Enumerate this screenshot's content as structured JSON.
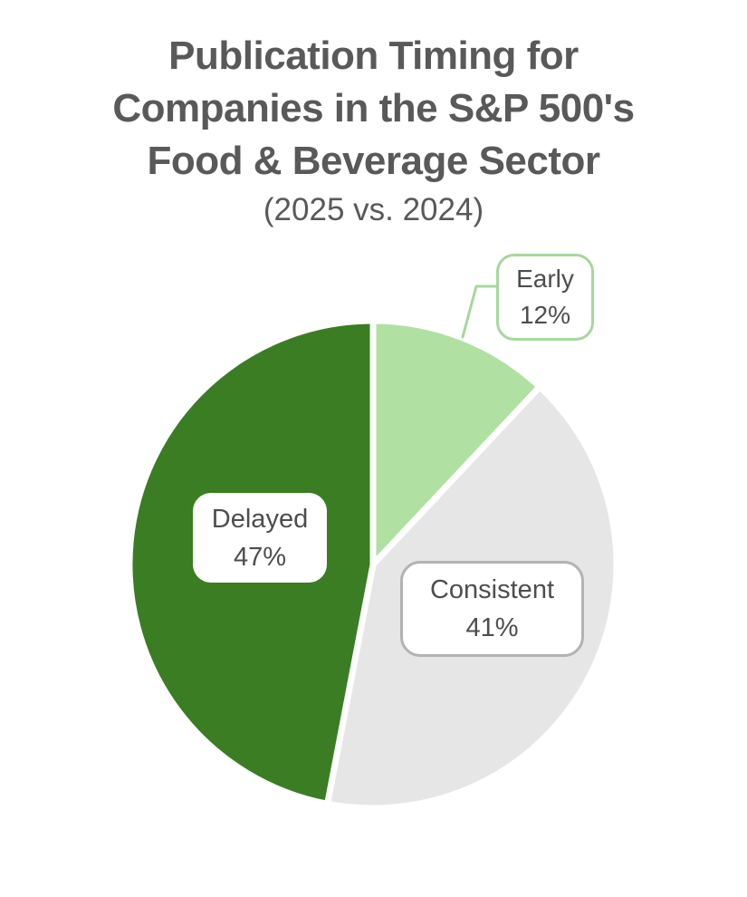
{
  "header": {
    "title_lines": [
      "Publication Timing for",
      "Companies in the S&P 500's",
      "Food & Beverage Sector"
    ],
    "subtitle": "(2025 vs. 2024)"
  },
  "colors": {
    "page_bg": "#FFFFFF",
    "title_text": "#595959",
    "label_text": "#4D4D4D",
    "slice_gap": "#FFFFFF",
    "early_box_border": "#A6D89B",
    "consistent_box_border": "#B3B3B3",
    "delayed_box_bg": "#FFFFFF"
  },
  "chart_data": {
    "type": "pie",
    "title": "Publication Timing for Companies in the S&P 500's Food & Beverage Sector",
    "subtitle": "(2025 vs. 2024)",
    "categories": [
      "Early",
      "Consistent",
      "Delayed"
    ],
    "values": [
      12,
      41,
      47
    ],
    "value_labels": [
      "12%",
      "41%",
      "47%"
    ],
    "colors": [
      "#B1E0A3",
      "#E6E6E6",
      "#3A7D22"
    ],
    "start_angle_deg": -90,
    "direction": "clockwise",
    "legend": "none",
    "annotations": "rounded white callout boxes: Early (light-green border, leader line to slice), Consistent (gray border, over gray slice), Delayed (borderless, over dark-green slice)"
  }
}
